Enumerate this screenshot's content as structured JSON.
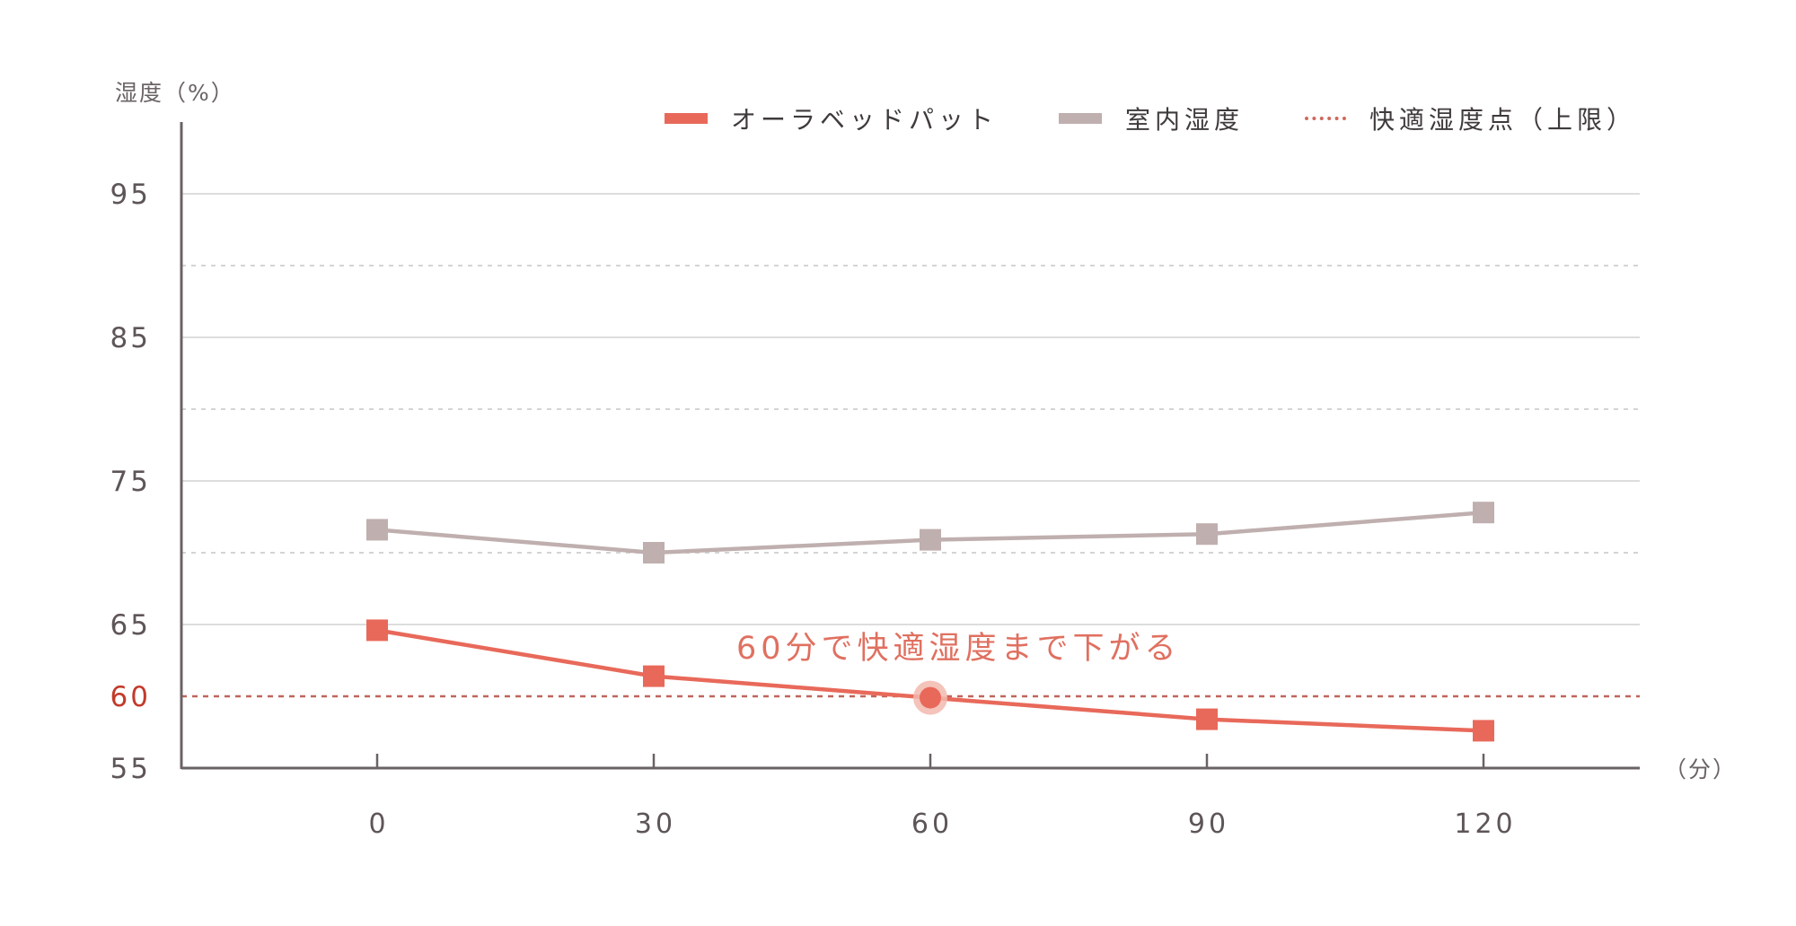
{
  "chart_data": {
    "type": "line",
    "title": "",
    "ylabel": "湿度（%）",
    "xlabel": "（分）",
    "x": [
      0,
      30,
      60,
      90,
      120
    ],
    "x_tick_labels": [
      "0",
      "30",
      "60",
      "90",
      "120"
    ],
    "y_tick_labels": [
      "95",
      "85",
      "75",
      "65",
      "60",
      "55"
    ],
    "ylim": [
      55,
      100
    ],
    "grid": {
      "solid_at": [
        95,
        85,
        75,
        65
      ],
      "dotted_at": [
        90,
        80,
        70
      ]
    },
    "series": [
      {
        "name": "オーラベッドパット",
        "values": [
          64.6,
          61.4,
          59.9,
          58.4,
          57.6
        ],
        "marker": "square",
        "color": "#E8695A"
      },
      {
        "name": "室内湿度",
        "values": [
          71.6,
          70.0,
          70.9,
          71.3,
          72.8
        ],
        "marker": "square",
        "color": "#C0AFAF"
      }
    ],
    "reference_lines": [
      {
        "name": "快適湿度点（上限）",
        "y": 60,
        "style": "dotted",
        "color": "#C0655A"
      }
    ],
    "annotations": [
      {
        "text": "60分で快適湿度まで下がる",
        "x": 60,
        "y": 60,
        "highlight_point": true,
        "color": "#E07060"
      }
    ],
    "legend_position": "top-right"
  },
  "labels": {
    "y_axis_title": "湿度（%）",
    "x_axis_unit": "（分）",
    "annotation": "60分で快適湿度まで下がる",
    "legend": [
      {
        "label": "オーラベッドパット",
        "kind": "solid",
        "color": "#E8695A"
      },
      {
        "label": "室内湿度",
        "kind": "solid",
        "color": "#C0AFAF"
      },
      {
        "label": "快適湿度点（上限）",
        "kind": "dotted",
        "color": "#D0685C"
      }
    ]
  },
  "colors": {
    "axis": "#6a6264",
    "tick_text": "#5e5557",
    "highlight_tick_text": "#C23A2A",
    "grid_solid": "#dddddd",
    "grid_dotted": "#d4d4d4",
    "annotation": "#E07060",
    "highlight_halo": "#F2B8AE"
  }
}
